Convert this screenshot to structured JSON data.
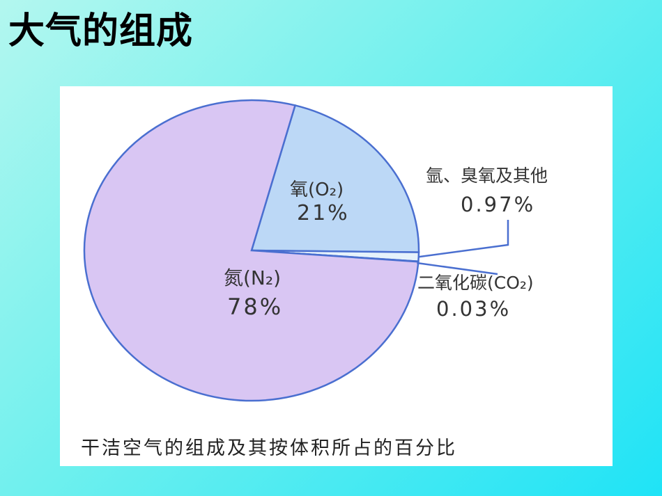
{
  "slide": {
    "title": "大气的组成"
  },
  "chart_data": {
    "type": "pie",
    "caption": "干洁空气的组成及其按体积所占的百分比",
    "slices": [
      {
        "name": "氮(N₂)",
        "percent_label": "78%",
        "value": 78,
        "color": "#d9c6f3"
      },
      {
        "name": "氧(O₂)",
        "percent_label": "21%",
        "value": 21,
        "color": "#bcd8f6"
      },
      {
        "name": "氩、臭氧及其他",
        "percent_label": "0.97%",
        "value": 0.97,
        "color": "#e6f2fb"
      },
      {
        "name": "二氧化碳(CO₂)",
        "percent_label": "0.03%",
        "value": 0.03,
        "color": "#eef6fb"
      }
    ],
    "edge_color": "#4a6fd0"
  }
}
